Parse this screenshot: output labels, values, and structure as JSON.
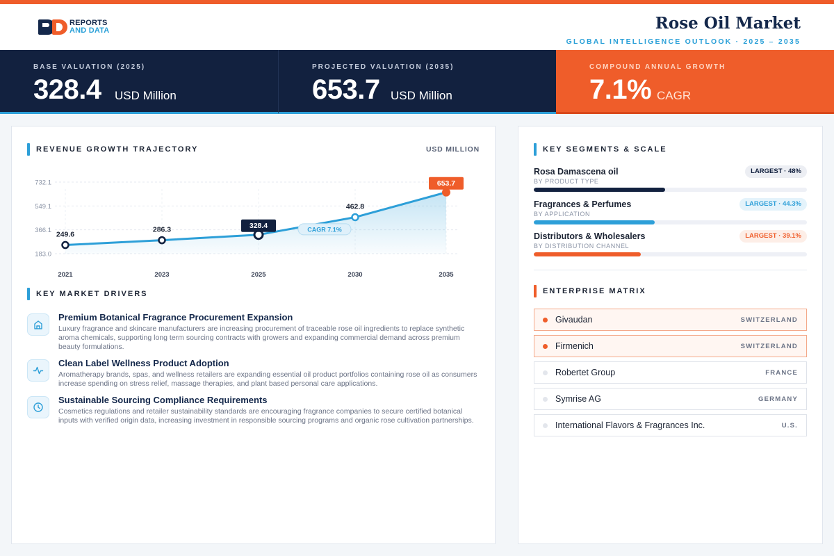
{
  "brand": {
    "line1": "REPORTS",
    "line2": "AND DATA"
  },
  "header": {
    "title": "Rose Oil Market",
    "subtitle": "GLOBAL INTELLIGENCE OUTLOOK  ·  2025 – 2035"
  },
  "kpis": [
    {
      "label": "BASE VALUATION (2025)",
      "value": "328.4",
      "unit": "USD Million"
    },
    {
      "label": "PROJECTED VALUATION (2035)",
      "value": "653.7",
      "unit": "USD Million"
    },
    {
      "label": "COMPOUND ANNUAL GROWTH",
      "value": "7.1%",
      "unit": "CAGR"
    }
  ],
  "colors": {
    "navy": "#12213f",
    "accent_blue": "#2d9fd8",
    "accent_orange": "#ef5d2a"
  },
  "revenue_chart": {
    "section_title": "REVENUE GROWTH TRAJECTORY",
    "unit_label": "USD MILLION",
    "cagr_label": "CAGR 7.1%"
  },
  "chart_data": {
    "type": "area",
    "title": "REVENUE GROWTH TRAJECTORY",
    "ylabel": "USD MILLION",
    "x": [
      "2021",
      "2023",
      "2025",
      "2030",
      "2035"
    ],
    "values": [
      249.6,
      286.3,
      328.4,
      462.8,
      653.7
    ],
    "data_labels": [
      "249.6",
      "286.3",
      "328.4",
      "462.8",
      "653.7"
    ],
    "y_ticks": [
      "183.0",
      "366.1",
      "549.1",
      "732.1"
    ],
    "ylim": [
      183.0,
      732.1
    ],
    "highlight": {
      "base_index": 2,
      "projected_index": 4
    },
    "grid": true
  },
  "drivers": {
    "section_title": "KEY MARKET DRIVERS",
    "items": [
      {
        "icon": "building-icon",
        "title": "Premium Botanical Fragrance Procurement Expansion",
        "desc": "Luxury fragrance and skincare manufacturers are increasing procurement of traceable rose oil ingredients to replace synthetic aroma chemicals, supporting long term sourcing contracts with growers and expanding commercial demand across premium beauty formulations."
      },
      {
        "icon": "pulse-icon",
        "title": "Clean Label Wellness Product Adoption",
        "desc": "Aromatherapy brands, spas, and wellness retailers are expanding essential oil product portfolios containing rose oil as consumers increase spending on stress relief, massage therapies, and plant based personal care applications."
      },
      {
        "icon": "clock-icon",
        "title": "Sustainable Sourcing Compliance Requirements",
        "desc": "Cosmetics regulations and retailer sustainability standards are encouraging fragrance companies to secure certified botanical inputs with verified origin data, increasing investment in responsible sourcing programs and organic rose cultivation partnerships."
      }
    ]
  },
  "segments": {
    "section_title": "KEY SEGMENTS & SCALE",
    "items": [
      {
        "name": "Rosa Damascena oil",
        "category": "BY PRODUCT TYPE",
        "badge": "LARGEST · 48%",
        "share": 0.48
      },
      {
        "name": "Fragrances & Perfumes",
        "category": "BY APPLICATION",
        "badge": "LARGEST · 44.3%",
        "share": 0.443
      },
      {
        "name": "Distributors & Wholesalers",
        "category": "BY DISTRIBUTION CHANNEL",
        "badge": "LARGEST · 39.1%",
        "share": 0.391
      }
    ]
  },
  "enterprise": {
    "section_title": "ENTERPRISE MATRIX",
    "items": [
      {
        "name": "Givaudan",
        "country": "SWITZERLAND",
        "highlight": true
      },
      {
        "name": "Firmenich",
        "country": "SWITZERLAND",
        "highlight": true
      },
      {
        "name": "Robertet Group",
        "country": "FRANCE",
        "highlight": false
      },
      {
        "name": "Symrise AG",
        "country": "GERMANY",
        "highlight": false
      },
      {
        "name": "International Flavors & Fragrances Inc.",
        "country": "U.S.",
        "highlight": false
      }
    ]
  }
}
